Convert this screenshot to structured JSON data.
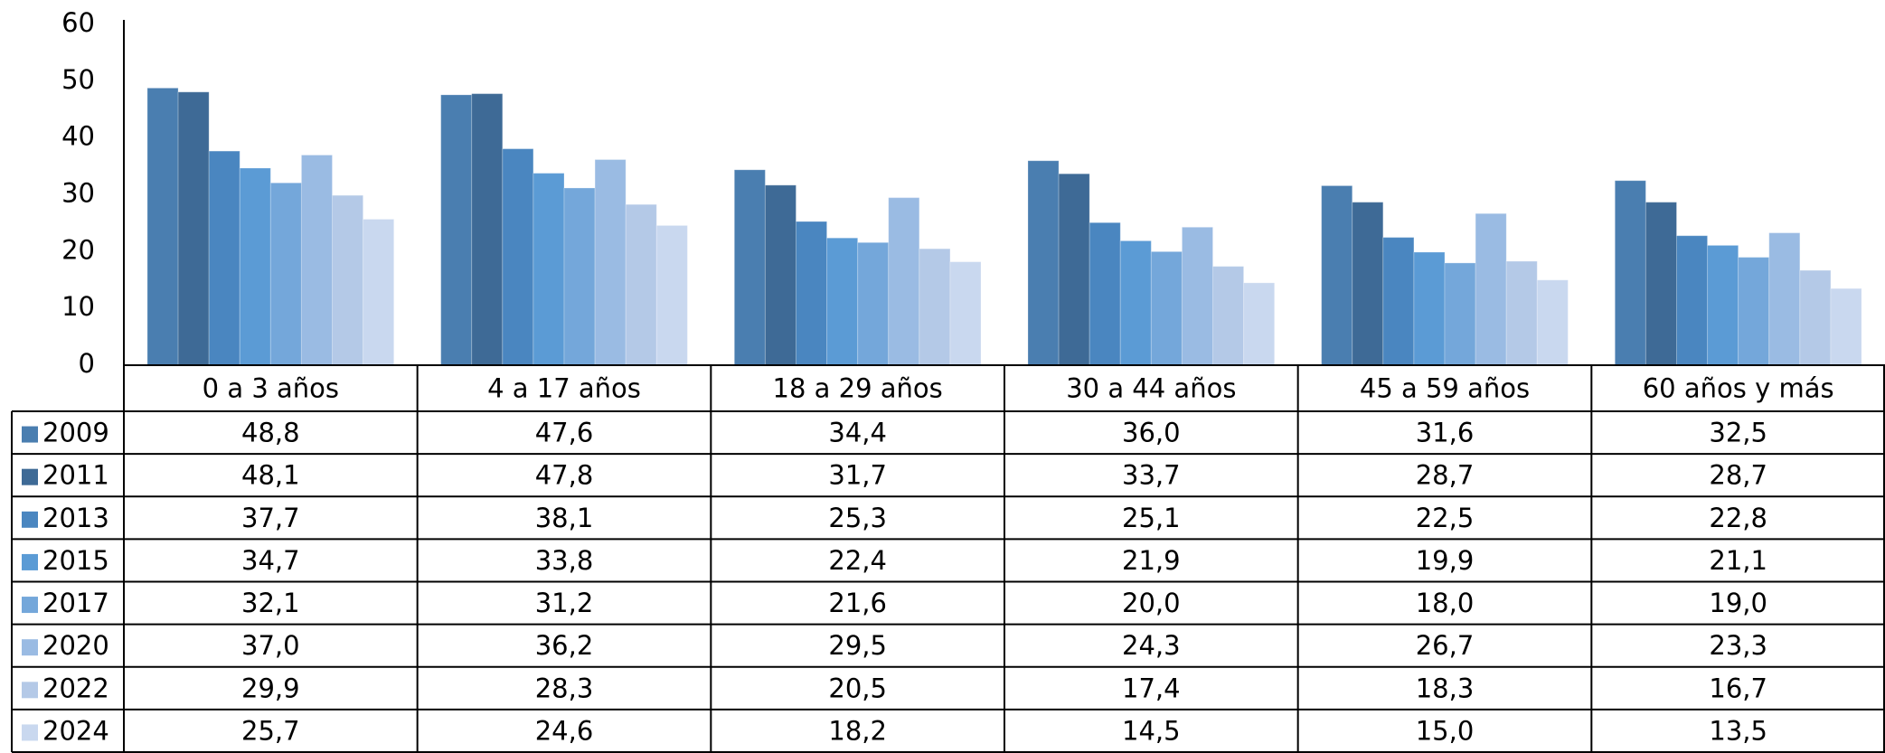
{
  "chart_data": {
    "type": "bar",
    "categories": [
      "0 a 3 años",
      "4 a 17 años",
      "18 a 29 años",
      "30 a 44 años",
      "45 a 59 años",
      "60 años y más"
    ],
    "series": [
      {
        "name": "2009",
        "color": "#4a7eb0",
        "values": [
          48.8,
          47.6,
          34.4,
          36.0,
          31.6,
          32.5
        ],
        "value_labels": [
          "48,8",
          "47,6",
          "34,4",
          "36,0",
          "31,6",
          "32,5"
        ]
      },
      {
        "name": "2011",
        "color": "#3e6a96",
        "values": [
          48.1,
          47.8,
          31.7,
          33.7,
          28.7,
          28.7
        ],
        "value_labels": [
          "48,1",
          "47,8",
          "31,7",
          "33,7",
          "28,7",
          "28,7"
        ]
      },
      {
        "name": "2013",
        "color": "#4a86c0",
        "values": [
          37.7,
          38.1,
          25.3,
          25.1,
          22.5,
          22.8
        ],
        "value_labels": [
          "37,7",
          "38,1",
          "25,3",
          "25,1",
          "22,5",
          "22,8"
        ]
      },
      {
        "name": "2015",
        "color": "#5b9bd5",
        "values": [
          34.7,
          33.8,
          22.4,
          21.9,
          19.9,
          21.1
        ],
        "value_labels": [
          "34,7",
          "33,8",
          "22,4",
          "21,9",
          "19,9",
          "21,1"
        ]
      },
      {
        "name": "2017",
        "color": "#74a7da",
        "values": [
          32.1,
          31.2,
          21.6,
          20.0,
          18.0,
          19.0
        ],
        "value_labels": [
          "32,1",
          "31,2",
          "21,6",
          "20,0",
          "18,0",
          "19,0"
        ]
      },
      {
        "name": "2020",
        "color": "#9abbe3",
        "values": [
          37.0,
          36.2,
          29.5,
          24.3,
          26.7,
          23.3
        ],
        "value_labels": [
          "37,0",
          "36,2",
          "29,5",
          "24,3",
          "26,7",
          "23,3"
        ]
      },
      {
        "name": "2022",
        "color": "#b4c9e7",
        "values": [
          29.9,
          28.3,
          20.5,
          17.4,
          18.3,
          16.7
        ],
        "value_labels": [
          "29,9",
          "28,3",
          "20,5",
          "17,4",
          "18,3",
          "16,7"
        ]
      },
      {
        "name": "2024",
        "color": "#c9d8ef",
        "values": [
          25.7,
          24.6,
          18.2,
          14.5,
          15.0,
          13.5
        ],
        "value_labels": [
          "25,7",
          "24,6",
          "18,2",
          "14,5",
          "15,0",
          "13,5"
        ]
      }
    ],
    "ylim": [
      0,
      60
    ],
    "yticks": [
      0,
      10,
      20,
      30,
      40,
      50,
      60
    ]
  }
}
